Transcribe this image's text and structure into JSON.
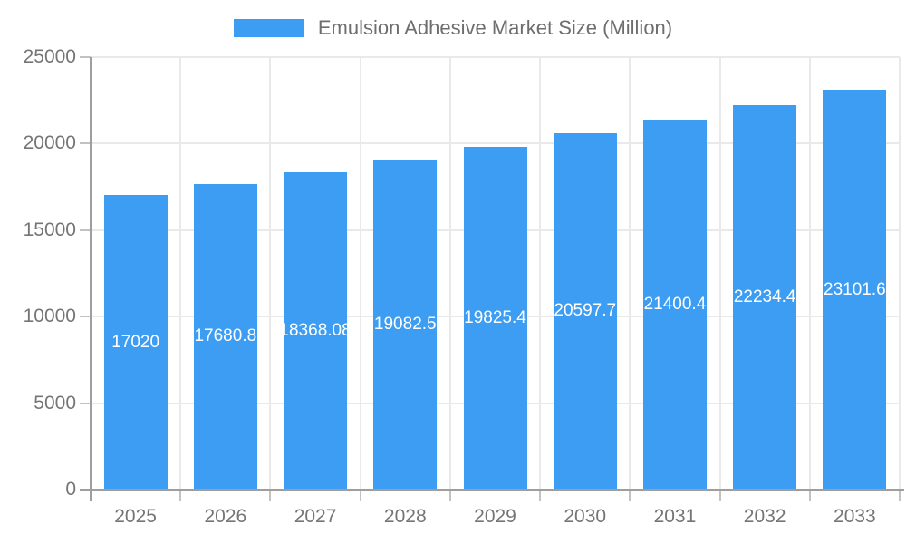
{
  "legend": {
    "label": "Emulsion Adhesive Market Size (Million)"
  },
  "chart_data": {
    "type": "bar",
    "title": "Emulsion Adhesive Market Size (Million)",
    "legend_position": "top",
    "categories": [
      "2025",
      "2026",
      "2027",
      "2028",
      "2029",
      "2030",
      "2031",
      "2032",
      "2033"
    ],
    "values": [
      17020,
      17680.8,
      18368.08,
      19082.5,
      19825.4,
      20597.7,
      21400.4,
      22234.4,
      23101.6
    ],
    "bar_labels": [
      "17020",
      "17680.8",
      "18368.08",
      "19082.5",
      "19825.4",
      "20597.7",
      "21400.4",
      "22234.4",
      "23101.6"
    ],
    "xlabel": "",
    "ylabel": "",
    "ylim": [
      0,
      25000
    ],
    "yticks": [
      0,
      5000,
      10000,
      15000,
      20000,
      25000
    ],
    "grid": true,
    "colors": {
      "bar": "#3d9df3",
      "bar_label": "#ffffff",
      "axis_text": "#757575",
      "legend_text": "#6e6e6e",
      "axis_line": "#9e9e9e",
      "tick": "#c2c2c2",
      "gridline": "#e9e9e9",
      "background": "#ffffff"
    }
  }
}
